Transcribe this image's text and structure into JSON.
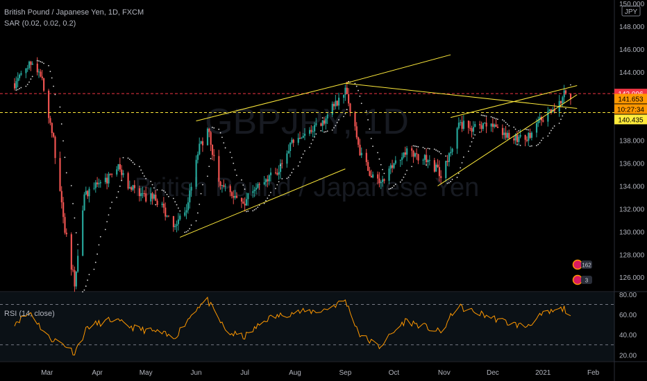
{
  "header": {
    "symbol_line": "British Pound / Japanese Yen, 1D, FXCM",
    "indicator_line": "SAR (0.02, 0.02, 0.2)",
    "rsi_label": "RSI (14, close)"
  },
  "watermark": {
    "ticker": "GBPJPY, 1D",
    "name": "British Pound / Japanese Yen"
  },
  "price_axis": {
    "currency": "JPY",
    "ticks": [
      "150.000",
      "148.000",
      "146.000",
      "144.000",
      "142.000",
      "140.000",
      "138.000",
      "136.000",
      "134.000",
      "132.000",
      "130.000",
      "128.000",
      "126.000"
    ],
    "badges": [
      {
        "text": "142.096",
        "bg": "#f23645",
        "fg": "#ffffff"
      },
      {
        "text": "141.653",
        "bg": "#ff9800",
        "fg": "#000000"
      },
      {
        "text": "10:27:34",
        "bg": "#ff9800",
        "fg": "#000000"
      },
      {
        "text": "140.435",
        "bg": "#ffeb3b",
        "fg": "#000000"
      }
    ]
  },
  "rsi_axis": {
    "ticks": [
      "80.00",
      "60.00",
      "40.00",
      "20.00"
    ]
  },
  "time_axis": {
    "labels": [
      "Mar",
      "Apr",
      "May",
      "Jun",
      "Jul",
      "Aug",
      "Sep",
      "Oct",
      "Nov",
      "Dec",
      "2021",
      "Feb"
    ]
  },
  "events": {
    "badge_top": "162",
    "badge_bottom": "3"
  },
  "colors": {
    "up": "#26a69a",
    "down": "#ef5350",
    "sar": "#e0e0e0",
    "trend": "#ffeb3b",
    "rsi": "#ff9800",
    "hline_red": "#f23645",
    "hline_yellow": "#ffeb3b"
  },
  "chart_data": {
    "type": "candlestick",
    "title": "British Pound / Japanese Yen, 1D, FXCM",
    "series": [
      {
        "name": "GBPJPY",
        "anchors": [
          {
            "t": "2020-02-10",
            "v": 143.0
          },
          {
            "t": "2020-02-20",
            "v": 145.0
          },
          {
            "t": "2020-02-27",
            "v": 143.5
          },
          {
            "t": "2020-03-05",
            "v": 138.0
          },
          {
            "t": "2020-03-11",
            "v": 131.0
          },
          {
            "t": "2020-03-18",
            "v": 125.5
          },
          {
            "t": "2020-03-24",
            "v": 133.0
          },
          {
            "t": "2020-03-31",
            "v": 134.0
          },
          {
            "t": "2020-04-07",
            "v": 134.5
          },
          {
            "t": "2020-04-14",
            "v": 135.5
          },
          {
            "t": "2020-04-21",
            "v": 134.0
          },
          {
            "t": "2020-04-28",
            "v": 133.0
          },
          {
            "t": "2020-05-05",
            "v": 133.0
          },
          {
            "t": "2020-05-12",
            "v": 132.0
          },
          {
            "t": "2020-05-18",
            "v": 130.0
          },
          {
            "t": "2020-05-26",
            "v": 132.0
          },
          {
            "t": "2020-06-02",
            "v": 137.0
          },
          {
            "t": "2020-06-08",
            "v": 139.0
          },
          {
            "t": "2020-06-15",
            "v": 134.5
          },
          {
            "t": "2020-06-25",
            "v": 133.0
          },
          {
            "t": "2020-06-30",
            "v": 132.5
          },
          {
            "t": "2020-07-09",
            "v": 134.5
          },
          {
            "t": "2020-07-20",
            "v": 135.0
          },
          {
            "t": "2020-07-31",
            "v": 138.0
          },
          {
            "t": "2020-08-10",
            "v": 138.5
          },
          {
            "t": "2020-08-20",
            "v": 140.0
          },
          {
            "t": "2020-09-01",
            "v": 142.5
          },
          {
            "t": "2020-09-10",
            "v": 137.0
          },
          {
            "t": "2020-09-15",
            "v": 135.5
          },
          {
            "t": "2020-09-22",
            "v": 134.0
          },
          {
            "t": "2020-09-30",
            "v": 136.0
          },
          {
            "t": "2020-10-08",
            "v": 137.0
          },
          {
            "t": "2020-10-20",
            "v": 136.5
          },
          {
            "t": "2020-10-30",
            "v": 135.0
          },
          {
            "t": "2020-11-06",
            "v": 137.5
          },
          {
            "t": "2020-11-09",
            "v": 139.5
          },
          {
            "t": "2020-11-20",
            "v": 139.0
          },
          {
            "t": "2020-12-01",
            "v": 139.5
          },
          {
            "t": "2020-12-10",
            "v": 138.5
          },
          {
            "t": "2020-12-21",
            "v": 138.0
          },
          {
            "t": "2020-12-31",
            "v": 140.0
          },
          {
            "t": "2021-01-08",
            "v": 140.5
          },
          {
            "t": "2021-01-14",
            "v": 142.0
          },
          {
            "t": "2021-01-18",
            "v": 141.65
          }
        ]
      },
      {
        "name": "RSI (14, close)",
        "anchors": [
          {
            "t": "2020-02-10",
            "v": 52
          },
          {
            "t": "2020-02-20",
            "v": 62
          },
          {
            "t": "2020-03-01",
            "v": 38
          },
          {
            "t": "2020-03-12",
            "v": 30
          },
          {
            "t": "2020-03-18",
            "v": 22
          },
          {
            "t": "2020-03-26",
            "v": 48
          },
          {
            "t": "2020-04-10",
            "v": 55
          },
          {
            "t": "2020-04-25",
            "v": 46
          },
          {
            "t": "2020-05-10",
            "v": 42
          },
          {
            "t": "2020-05-18",
            "v": 36
          },
          {
            "t": "2020-06-02",
            "v": 68
          },
          {
            "t": "2020-06-08",
            "v": 74
          },
          {
            "t": "2020-06-20",
            "v": 42
          },
          {
            "t": "2020-07-01",
            "v": 38
          },
          {
            "t": "2020-07-15",
            "v": 56
          },
          {
            "t": "2020-07-31",
            "v": 62
          },
          {
            "t": "2020-08-18",
            "v": 64
          },
          {
            "t": "2020-09-01",
            "v": 74
          },
          {
            "t": "2020-09-10",
            "v": 40
          },
          {
            "t": "2020-09-22",
            "v": 28
          },
          {
            "t": "2020-10-08",
            "v": 54
          },
          {
            "t": "2020-10-20",
            "v": 48
          },
          {
            "t": "2020-10-30",
            "v": 42
          },
          {
            "t": "2020-11-09",
            "v": 68
          },
          {
            "t": "2020-11-25",
            "v": 60
          },
          {
            "t": "2020-12-10",
            "v": 52
          },
          {
            "t": "2020-12-21",
            "v": 48
          },
          {
            "t": "2021-01-01",
            "v": 60
          },
          {
            "t": "2021-01-14",
            "v": 66
          },
          {
            "t": "2021-01-18",
            "v": 60
          }
        ]
      }
    ],
    "horizontal_levels": [
      {
        "value": 142.096,
        "style": "red-dashed"
      },
      {
        "value": 140.435,
        "style": "yellow-dashed"
      }
    ],
    "trendlines": [
      {
        "from": {
          "t": "2020-05-22",
          "v": 129.5
        },
        "to": {
          "t": "2020-09-01",
          "v": 135.5
        }
      },
      {
        "from": {
          "t": "2020-06-01",
          "v": 139.7
        },
        "to": {
          "t": "2020-09-01",
          "v": 143.0
        }
      },
      {
        "from": {
          "t": "2020-09-01",
          "v": 143.0
        },
        "to": {
          "t": "2020-11-05",
          "v": 145.5
        }
      },
      {
        "from": {
          "t": "2020-09-01",
          "v": 143.0
        },
        "to": {
          "t": "2021-01-22",
          "v": 140.8
        }
      },
      {
        "from": {
          "t": "2020-10-28",
          "v": 134.0
        },
        "to": {
          "t": "2021-01-22",
          "v": 142.0
        }
      },
      {
        "from": {
          "t": "2020-11-05",
          "v": 140.0
        },
        "to": {
          "t": "2021-01-22",
          "v": 142.8
        }
      }
    ],
    "xlim": [
      "2020-02-01",
      "2021-02-14"
    ],
    "ylim": [
      124.8,
      150.3
    ],
    "rsi_ylim": [
      14,
      82
    ],
    "rsi_levels": [
      70,
      30
    ],
    "grid": false
  }
}
